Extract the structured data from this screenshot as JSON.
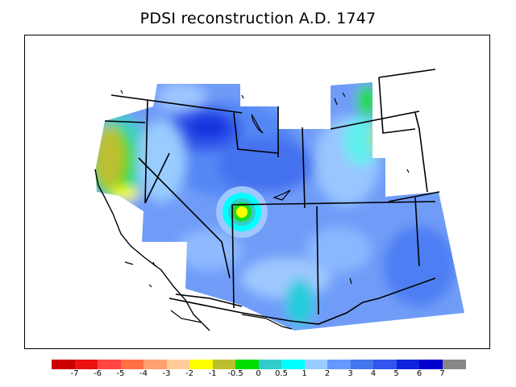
{
  "title": "PDSI reconstruction A.D. 1747",
  "legend": {
    "colors": [
      "#cc0000",
      "#ee1111",
      "#ff4444",
      "#ff7044",
      "#ffa070",
      "#ffcc99",
      "#ffff00",
      "#bcc030",
      "#00dd00",
      "#33cccc",
      "#00ffff",
      "#99ccff",
      "#6699ff",
      "#4477ee",
      "#3355ee",
      "#1122dd",
      "#0000cc",
      "#888888"
    ],
    "ticks": [
      "-7",
      "-6",
      "-5",
      "-4",
      "-3",
      "-2",
      "-1",
      "-0.5",
      "0",
      "0.5",
      "1",
      "2",
      "3",
      "4",
      "5",
      "6",
      "7"
    ]
  }
}
